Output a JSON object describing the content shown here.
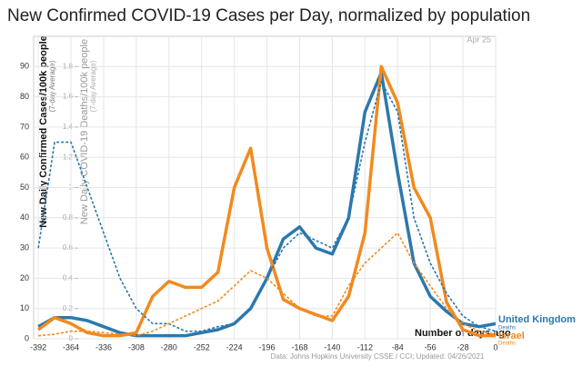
{
  "chart_data": {
    "type": "line",
    "title": "New Confirmed COVID-19 Cases per Day, normalized by population",
    "y_label": "New Daily Confirmed Cases/100k people",
    "y_label_sub": "(7-day Average)",
    "y2_label": "New Daily COVID-19 Deaths/100k people",
    "y2_label_sub": "(7-day Average)",
    "x_label": "Number of days ago",
    "date_note": "Apr 25",
    "source": "Data: Johns Hopkins University CSSE / CCI; Updated: 04/26/2021",
    "x": [
      -392,
      -378,
      -364,
      -350,
      -336,
      -322,
      -308,
      -294,
      -280,
      -266,
      -252,
      -238,
      -224,
      -210,
      -196,
      -182,
      -168,
      -154,
      -140,
      -126,
      -112,
      -98,
      -84,
      -70,
      -56,
      -42,
      -28,
      -14,
      0
    ],
    "series": [
      {
        "name": "United Kingdom",
        "color": "#2b78ad",
        "style": "solid",
        "axis": "y",
        "values": [
          4,
          7,
          7,
          6,
          4,
          2,
          1,
          1,
          1,
          1,
          2,
          3,
          5,
          10,
          20,
          33,
          37,
          30,
          28,
          40,
          75,
          88,
          55,
          25,
          14,
          9,
          5,
          4,
          5
        ]
      },
      {
        "name": "Israel",
        "color": "#f28a1e",
        "style": "solid",
        "axis": "y",
        "values": [
          3,
          7,
          5,
          2,
          1,
          1,
          2,
          14,
          19,
          17,
          17,
          22,
          50,
          63,
          30,
          13,
          10,
          8,
          6,
          14,
          35,
          90,
          78,
          50,
          40,
          12,
          3,
          1,
          1
        ]
      },
      {
        "name": "Deaths",
        "color": "#2b78ad",
        "style": "dashed",
        "axis": "y2",
        "values": [
          0.6,
          1.3,
          1.3,
          1.0,
          0.7,
          0.4,
          0.2,
          0.1,
          0.1,
          0.05,
          0.05,
          0.08,
          0.1,
          0.2,
          0.4,
          0.6,
          0.7,
          0.65,
          0.6,
          0.8,
          1.3,
          1.7,
          1.5,
          0.8,
          0.5,
          0.3,
          0.15,
          0.08,
          0.05
        ]
      },
      {
        "name": "Deaths",
        "color": "#f28a1e",
        "style": "dashed",
        "axis": "y2",
        "values": [
          0.02,
          0.03,
          0.05,
          0.05,
          0.04,
          0.03,
          0.02,
          0.05,
          0.1,
          0.15,
          0.2,
          0.25,
          0.35,
          0.45,
          0.4,
          0.3,
          0.2,
          0.15,
          0.15,
          0.35,
          0.5,
          0.6,
          0.7,
          0.5,
          0.35,
          0.2,
          0.1,
          0.05,
          0.03
        ]
      }
    ],
    "xlim": [
      -396,
      0
    ],
    "xticks": [
      -392,
      -364,
      -336,
      -308,
      -280,
      -252,
      -224,
      -196,
      -168,
      -140,
      -112,
      -84,
      -56,
      -28,
      0
    ],
    "ylim": [
      0,
      100
    ],
    "yticks": [
      0,
      10,
      20,
      30,
      40,
      50,
      60,
      70,
      80,
      90
    ],
    "y2lim": [
      0,
      2
    ],
    "y2ticks": [
      0,
      0.2,
      0.4,
      0.6,
      0.8,
      1,
      1.2,
      1.4,
      1.6,
      1.8
    ],
    "grid": true
  }
}
